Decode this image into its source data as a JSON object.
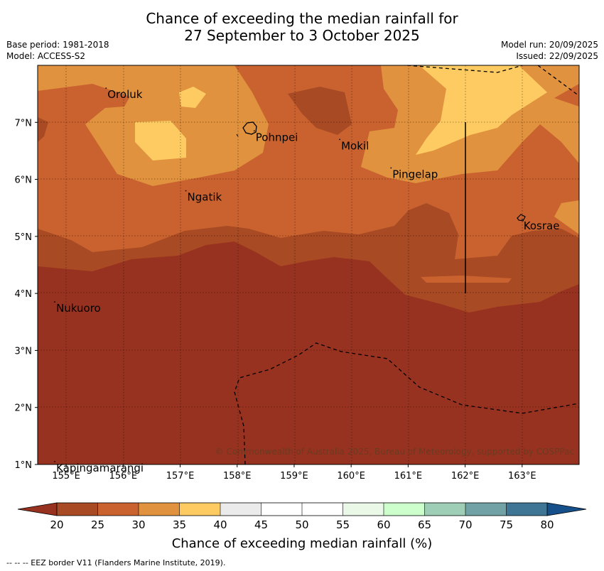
{
  "title": {
    "line1": "Chance of exceeding the median rainfall for",
    "line2": "27 September to 3 October 2025"
  },
  "meta": {
    "base_period": "Base period: 1981-2018",
    "model": "Model: ACCESS-S2",
    "model_run": "Model run: 20/09/2025",
    "issued": "Issued: 22/09/2025"
  },
  "map": {
    "lon_ticks": [
      "155°E",
      "156°E",
      "157°E",
      "158°E",
      "159°E",
      "160°E",
      "161°E",
      "162°E",
      "163°E"
    ],
    "lat_ticks": [
      "7°N",
      "6°N",
      "5°N",
      "4°N",
      "3°N",
      "2°N",
      "1°N"
    ],
    "places": [
      {
        "name": "Oroluk",
        "lon": 155.7,
        "lat": 7.6
      },
      {
        "name": "Pohnpei",
        "lon": 158.3,
        "lat": 6.85
      },
      {
        "name": "Mokil",
        "lon": 159.8,
        "lat": 6.7
      },
      {
        "name": "Pingelap",
        "lon": 160.7,
        "lat": 6.2
      },
      {
        "name": "Ngatik",
        "lon": 157.1,
        "lat": 5.8
      },
      {
        "name": "Kosrae",
        "lon": 163.0,
        "lat": 5.3
      },
      {
        "name": "Nukuoro",
        "lon": 154.8,
        "lat": 3.85
      },
      {
        "name": "Kapingamarangi",
        "lon": 154.8,
        "lat": 1.05
      }
    ],
    "copyright": "© Commonwealth of Australia 2025, Bureau of Meteorology, supported by COSPPac"
  },
  "colorbar": {
    "ticks": [
      "20",
      "25",
      "30",
      "35",
      "40",
      "45",
      "50",
      "55",
      "60",
      "65",
      "70",
      "75",
      "80"
    ],
    "colors": [
      "#a84a23",
      "#c9622f",
      "#e0923f",
      "#fdcb62",
      "#ebebeb",
      "#ffffff",
      "#ffffff",
      "#eaf8e8",
      "#ccffcc",
      "#9ecfb6",
      "#70a2a6",
      "#3f7595"
    ],
    "under_color": "#983220",
    "over_color": "#16508a",
    "label": "Chance of exceeding median rainfall (%)"
  },
  "footnote": "--  --  -- EEZ border V11 (Flanders Marine Institute, 2019)."
}
